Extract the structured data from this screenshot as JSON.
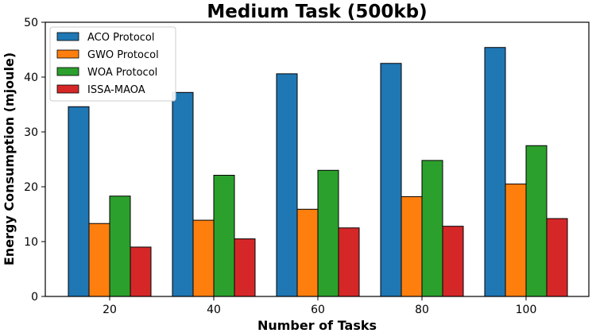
{
  "chart_data": {
    "type": "bar",
    "title": "Medium Task (500kb)",
    "xlabel": "Number of Tasks",
    "ylabel": "Energy Consumption (mjoule)",
    "categories": [
      "20",
      "40",
      "60",
      "80",
      "100"
    ],
    "ylim": [
      0,
      50
    ],
    "yticks": [
      "0",
      "10",
      "20",
      "30",
      "40",
      "50"
    ],
    "grid": false,
    "legend_position": "top-left",
    "series": [
      {
        "name": "ACO Protocol",
        "color": "#1f77b4",
        "values": [
          34.6,
          37.2,
          40.6,
          42.5,
          45.4
        ]
      },
      {
        "name": "GWO Protocol",
        "color": "#ff7f0e",
        "values": [
          13.3,
          13.9,
          15.9,
          18.2,
          20.5
        ]
      },
      {
        "name": "WOA Protocol",
        "color": "#2ca02c",
        "values": [
          18.3,
          22.1,
          23.0,
          24.8,
          27.5
        ]
      },
      {
        "name": "ISSA-MAOA",
        "color": "#d62728",
        "values": [
          9.0,
          10.5,
          12.5,
          12.8,
          14.2
        ]
      }
    ]
  }
}
